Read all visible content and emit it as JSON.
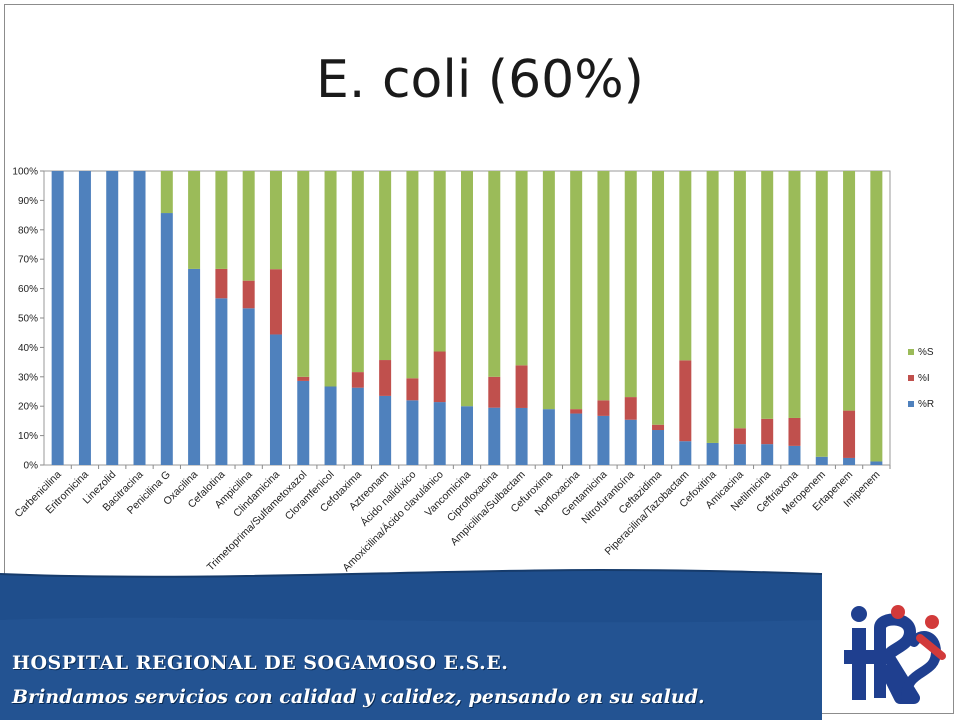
{
  "slide": {
    "title": "E. coli (60%)"
  },
  "footer": {
    "line1": "HOSPITAL REGIONAL DE SOGAMOSO E.S.E.",
    "line2": "Brindamos servicios con calidad y calidez, pensando en su salud."
  },
  "colors": {
    "R": "#4f81bd",
    "I": "#c0504d",
    "S": "#9bbb59",
    "banner": "#1f4e8c"
  },
  "chart_data": {
    "type": "bar",
    "stacked": true,
    "categories": [
      "Carbenicilina",
      "Eritromicina",
      "Linezolid",
      "Bacitracina",
      "Penicilina G",
      "Oxacilina",
      "Cefalotina",
      "Ampicilina",
      "Clindamicina",
      "Trimetoprima/Sulfametoxazol",
      "Cloramfenicol",
      "Cefotaxima",
      "Aztreonam",
      "Ácido nalidíxico",
      "Amoxicilina/Ácido clavulánico",
      "Vancomicina",
      "Ciprofloxacina",
      "Ampicilina/Sulbactam",
      "Cefuroxima",
      "Norfloxacina",
      "Gentamicina",
      "Nitrofurantoína",
      "Ceftazidima",
      "Piperacilina/Tazobactam",
      "Cefoxitina",
      "Amicacina",
      "Netilmicina",
      "Ceftriaxona",
      "Meropenem",
      "Ertapenem",
      "Imipenem"
    ],
    "series": [
      {
        "name": "%R",
        "values": [
          100,
          100,
          100,
          100,
          85.7,
          66.7,
          56.7,
          53.3,
          44.4,
          28.6,
          26.7,
          26.3,
          23.5,
          22,
          21.4,
          20,
          19.5,
          19.4,
          19,
          17.5,
          16.7,
          15.4,
          11.9,
          8.1,
          7.5,
          7.1,
          7.1,
          6.5,
          2.8,
          2.4,
          1.2
        ]
      },
      {
        "name": "%I",
        "values": [
          0,
          0,
          0,
          0,
          0,
          0,
          10,
          9.4,
          22.2,
          1.4,
          0,
          5.3,
          12.2,
          7.5,
          17.2,
          0,
          10.5,
          14.5,
          0,
          1.5,
          5.3,
          7.7,
          1.8,
          27.5,
          0,
          5.4,
          8.6,
          9.5,
          0,
          16.1,
          0
        ]
      },
      {
        "name": "%S",
        "values": [
          0,
          0,
          0,
          0,
          14.3,
          33.3,
          33.3,
          37.3,
          33.4,
          70,
          73.3,
          68.4,
          64.3,
          70.5,
          61.4,
          80,
          70,
          66.1,
          81,
          81,
          78,
          76.9,
          86.3,
          64.4,
          92.5,
          87.5,
          84.3,
          84,
          97.2,
          81.5,
          98.8
        ]
      }
    ],
    "y_ticks": [
      "0%",
      "10%",
      "20%",
      "30%",
      "40%",
      "50%",
      "60%",
      "70%",
      "80%",
      "90%",
      "100%"
    ],
    "ylim": [
      0,
      100
    ],
    "legend": {
      "position": "right",
      "order": [
        "%S",
        "%I",
        "%R"
      ]
    },
    "grid": false
  }
}
